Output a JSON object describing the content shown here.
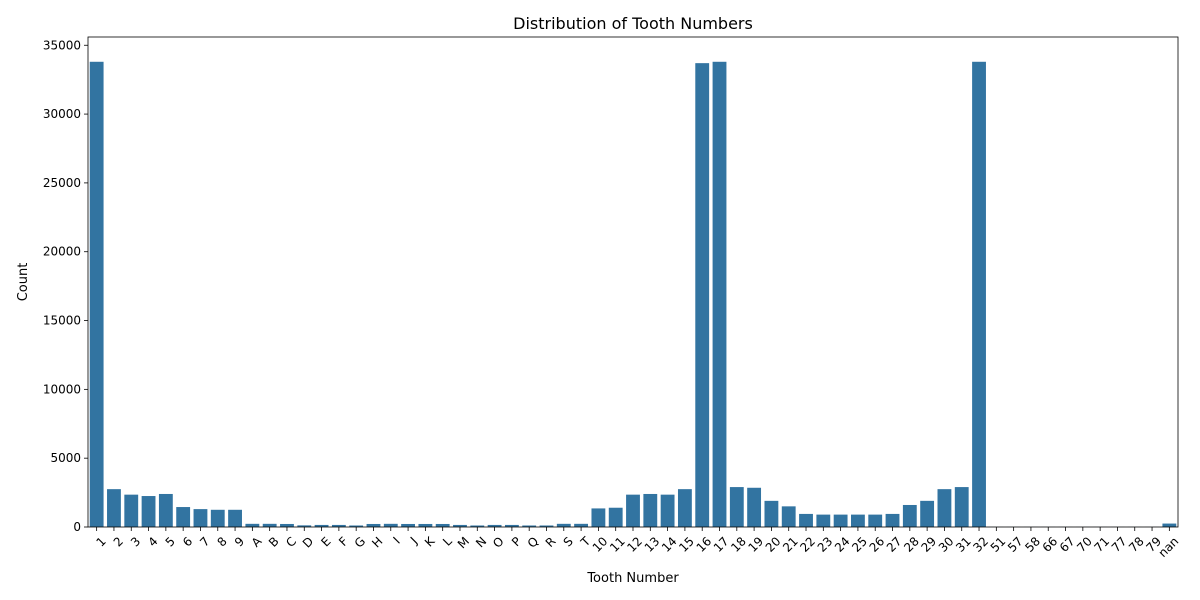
{
  "chart_data": {
    "type": "bar",
    "title": "Distribution of Tooth Numbers",
    "xlabel": "Tooth Number",
    "ylabel": "Count",
    "ylim": [
      0,
      35600
    ],
    "yticks": [
      0,
      5000,
      10000,
      15000,
      20000,
      25000,
      30000,
      35000
    ],
    "grid": false,
    "bar_color": "#3274a1",
    "categories": [
      "1",
      "2",
      "3",
      "4",
      "5",
      "6",
      "7",
      "8",
      "9",
      "A",
      "B",
      "C",
      "D",
      "E",
      "F",
      "G",
      "H",
      "I",
      "J",
      "K",
      "L",
      "M",
      "N",
      "O",
      "P",
      "Q",
      "R",
      "S",
      "T",
      "10",
      "11",
      "12",
      "13",
      "14",
      "15",
      "16",
      "17",
      "18",
      "19",
      "20",
      "21",
      "22",
      "23",
      "24",
      "25",
      "26",
      "27",
      "28",
      "29",
      "30",
      "31",
      "32",
      "51",
      "57",
      "58",
      "66",
      "67",
      "70",
      "71",
      "77",
      "78",
      "79",
      "nan"
    ],
    "values": [
      33800,
      2750,
      2350,
      2250,
      2400,
      1450,
      1300,
      1250,
      1250,
      230,
      230,
      220,
      120,
      150,
      150,
      110,
      220,
      230,
      220,
      220,
      220,
      150,
      110,
      150,
      150,
      110,
      110,
      230,
      230,
      1350,
      1400,
      2350,
      2400,
      2350,
      2750,
      33700,
      33800,
      2900,
      2850,
      1900,
      1500,
      950,
      900,
      900,
      900,
      900,
      950,
      1600,
      1900,
      2750,
      2900,
      33800,
      5,
      5,
      5,
      5,
      5,
      5,
      5,
      5,
      5,
      5,
      250
    ]
  }
}
